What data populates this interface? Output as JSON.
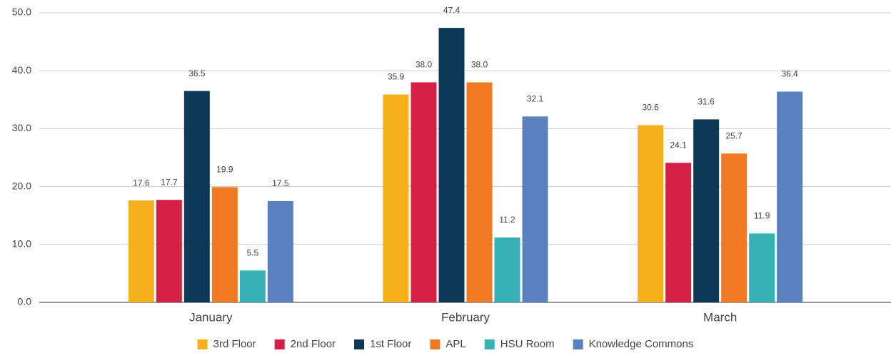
{
  "chart_data": {
    "type": "bar",
    "categories": [
      "January",
      "February",
      "March"
    ],
    "series": [
      {
        "name": "3rd Floor",
        "color": "#f5b01c",
        "values": [
          17.6,
          35.9,
          30.6
        ],
        "value_labels": [
          "17.6",
          "35.9",
          "30.6"
        ]
      },
      {
        "name": "2nd Floor",
        "color": "#d42045",
        "values": [
          17.7,
          38,
          24.1
        ],
        "value_labels": [
          "17.7",
          "38.0",
          "24.1"
        ]
      },
      {
        "name": "1st Floor",
        "color": "#0c3955",
        "values": [
          36.5,
          47.4,
          31.6
        ],
        "value_labels": [
          "36.5",
          "47.4",
          "31.6"
        ]
      },
      {
        "name": "APL",
        "color": "#f07a23",
        "values": [
          19.9,
          38,
          25.7
        ],
        "value_labels": [
          "19.9",
          "38.0",
          "25.7"
        ]
      },
      {
        "name": "HSU Room",
        "color": "#37b2b4",
        "values": [
          5.5,
          11.2,
          11.9
        ],
        "value_labels": [
          "5.5",
          "11.2",
          "11.9"
        ]
      },
      {
        "name": "Knowledge Commons",
        "color": "#5a80c0",
        "values": [
          17.5,
          32.1,
          36.4
        ],
        "value_labels": [
          "17.5",
          "32.1",
          "36.4"
        ]
      }
    ],
    "ylim": [
      0,
      50
    ],
    "yticks": [
      {
        "value": 0,
        "label": "0.0"
      },
      {
        "value": 10,
        "label": "10.0"
      },
      {
        "value": 20,
        "label": "20.0"
      },
      {
        "value": 30,
        "label": "30.0"
      },
      {
        "value": 40,
        "label": "40.0"
      },
      {
        "value": 50,
        "label": "50.0"
      }
    ],
    "grid": true,
    "legend": "bottom"
  }
}
